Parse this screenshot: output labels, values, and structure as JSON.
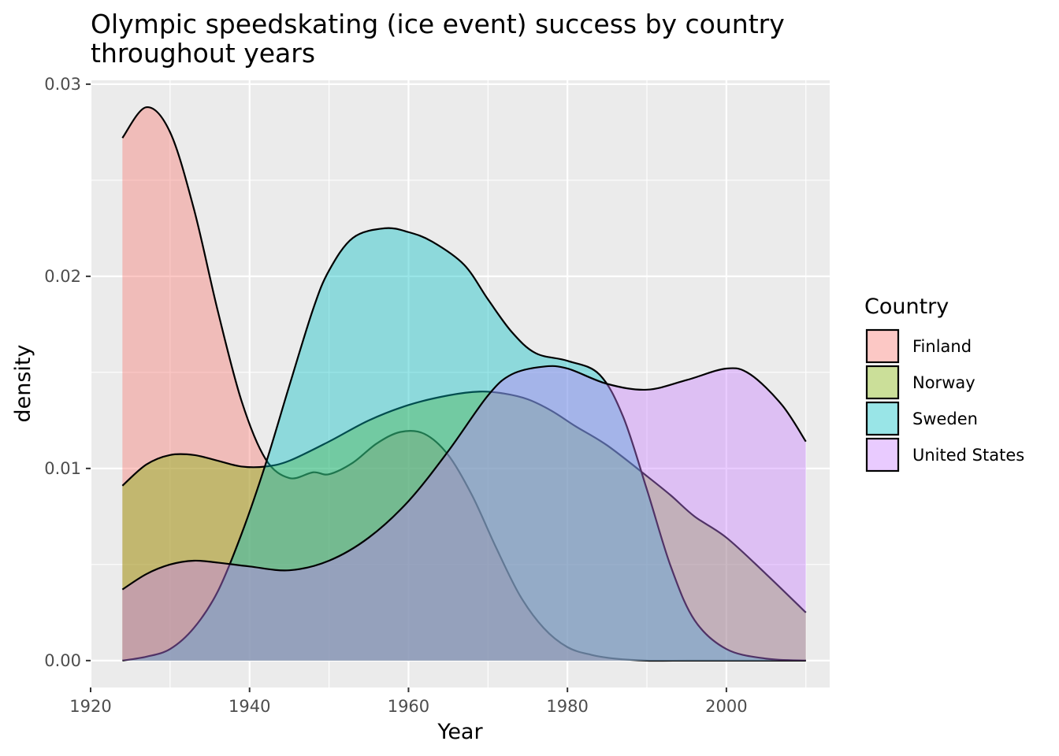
{
  "chart_data": {
    "type": "area",
    "subtype": "density",
    "title": "Olympic speedskating (ice event) success by country\n throughout years",
    "xlabel": "Year",
    "ylabel": "density",
    "xlim": [
      1920,
      2013
    ],
    "ylim": [
      -0.0014,
      0.0302
    ],
    "x_ticks": [
      1920,
      1940,
      1960,
      1980,
      2000
    ],
    "x_tick_labels": [
      "1920",
      "1940",
      "1960",
      "1980",
      "2000"
    ],
    "y_ticks": [
      0.0,
      0.01,
      0.02,
      0.03
    ],
    "y_tick_labels": [
      "0.00",
      "0.01",
      "0.02",
      "0.03"
    ],
    "grid": true,
    "legend": {
      "title": "Country",
      "position": "right"
    },
    "series": [
      {
        "name": "Finland",
        "color": "#F8766D",
        "x": [
          1924,
          1927,
          1930,
          1933,
          1936,
          1939,
          1942,
          1945,
          1948,
          1950,
          1953,
          1956,
          1959,
          1962,
          1965,
          1968,
          1971,
          1974,
          1977,
          1980,
          1983,
          1986,
          1990,
          1995,
          2000,
          2005,
          2010
        ],
        "y": [
          0.0272,
          0.0288,
          0.0275,
          0.0235,
          0.0182,
          0.0135,
          0.0105,
          0.0095,
          0.0098,
          0.0097,
          0.0103,
          0.0113,
          0.0119,
          0.0118,
          0.0107,
          0.0086,
          0.0059,
          0.0034,
          0.0017,
          0.0007,
          0.0003,
          0.0001,
          0.0,
          0.0,
          0.0,
          0.0,
          0.0
        ]
      },
      {
        "name": "Norway",
        "color": "#7CAE00",
        "x": [
          1924,
          1927,
          1930,
          1933,
          1936,
          1939,
          1942,
          1945,
          1950,
          1955,
          1960,
          1965,
          1969,
          1972,
          1975,
          1978,
          1981,
          1985,
          1990,
          1993,
          1996,
          2000,
          2005,
          2010
        ],
        "y": [
          0.0091,
          0.0102,
          0.0107,
          0.0107,
          0.0104,
          0.0101,
          0.0101,
          0.0104,
          0.0114,
          0.0125,
          0.0133,
          0.0138,
          0.014,
          0.0139,
          0.0136,
          0.013,
          0.0122,
          0.0112,
          0.0096,
          0.0086,
          0.0075,
          0.0064,
          0.0045,
          0.0025
        ]
      },
      {
        "name": "Sweden",
        "color": "#00BFC4",
        "x": [
          1924,
          1927,
          1930,
          1933,
          1936,
          1939,
          1942,
          1945,
          1948,
          1950,
          1953,
          1957,
          1960,
          1963,
          1967,
          1970,
          1973,
          1976,
          1980,
          1984,
          1987,
          1990,
          1993,
          1996,
          2000,
          2005,
          2010
        ],
        "y": [
          0.0,
          0.0002,
          0.0006,
          0.0017,
          0.0036,
          0.0066,
          0.0102,
          0.0143,
          0.0183,
          0.0203,
          0.022,
          0.0225,
          0.0223,
          0.0218,
          0.0206,
          0.0188,
          0.0171,
          0.016,
          0.0156,
          0.0149,
          0.0127,
          0.0089,
          0.0049,
          0.0021,
          0.0006,
          0.0001,
          0.0
        ]
      },
      {
        "name": "United States",
        "color": "#C77CFF",
        "x": [
          1924,
          1927,
          1930,
          1933,
          1936,
          1940,
          1945,
          1950,
          1955,
          1960,
          1965,
          1970,
          1973,
          1977,
          1980,
          1985,
          1990,
          1995,
          2000,
          2003,
          2007,
          2010
        ],
        "y": [
          0.0037,
          0.0045,
          0.005,
          0.0052,
          0.0051,
          0.0049,
          0.0047,
          0.0052,
          0.0064,
          0.0083,
          0.0109,
          0.0138,
          0.0149,
          0.0153,
          0.0152,
          0.0144,
          0.0141,
          0.0146,
          0.0152,
          0.0149,
          0.0133,
          0.0114
        ]
      }
    ]
  }
}
